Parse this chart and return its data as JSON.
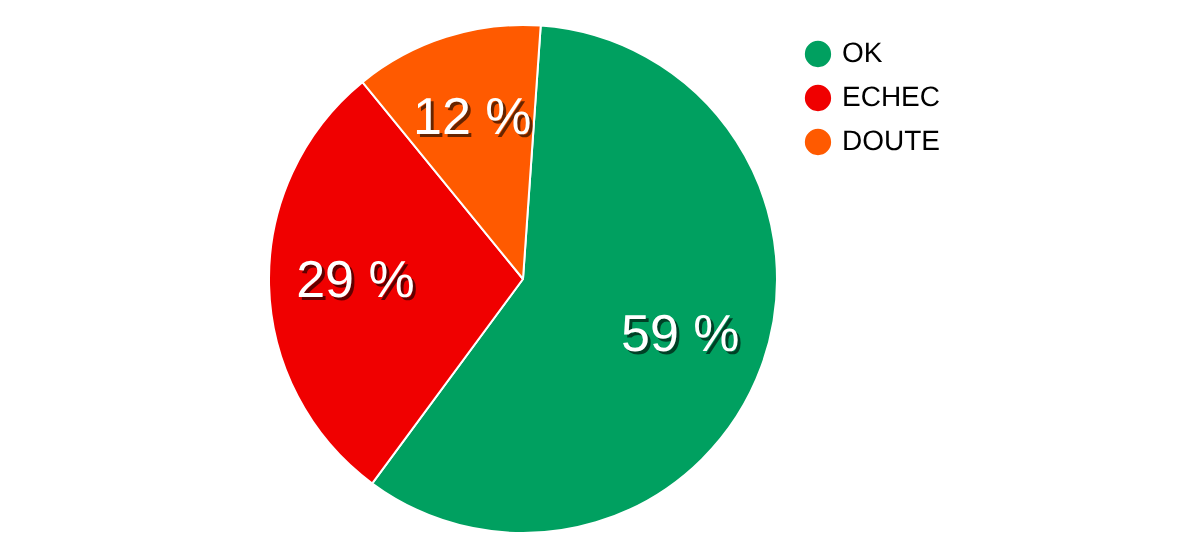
{
  "chart_data": {
    "type": "pie",
    "categories": [
      "OK",
      "ECHEC",
      "DOUTE"
    ],
    "values": [
      59,
      29,
      12
    ],
    "colors": [
      "#00a060",
      "#f00000",
      "#ff5a00"
    ],
    "value_labels": [
      "59 %",
      "29 %",
      "12 %"
    ],
    "legend": "top right"
  }
}
